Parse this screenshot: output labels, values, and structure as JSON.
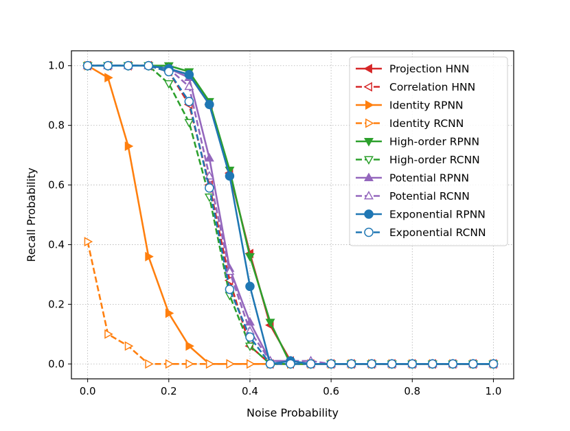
{
  "chart_data": {
    "type": "line",
    "title": "",
    "xlabel": "Noise Probability",
    "ylabel": "Recall Probability",
    "xlim": [
      -0.04,
      1.05
    ],
    "ylim": [
      -0.05,
      1.05
    ],
    "xticks": [
      0.0,
      0.2,
      0.4,
      0.6,
      0.8,
      1.0
    ],
    "xtick_labels": [
      "0.0",
      "0.2",
      "0.4",
      "0.6",
      "0.8",
      "1.0"
    ],
    "yticks": [
      0.0,
      0.2,
      0.4,
      0.6,
      0.8,
      1.0
    ],
    "ytick_labels": [
      "0.0",
      "0.2",
      "0.4",
      "0.6",
      "0.8",
      "1.0"
    ],
    "grid": true,
    "legend_position": "top-right",
    "x": [
      0.0,
      0.05,
      0.1,
      0.15,
      0.2,
      0.25,
      0.3,
      0.35,
      0.4,
      0.45,
      0.5,
      0.55,
      0.6,
      0.65,
      0.7,
      0.75,
      0.8,
      0.85,
      0.9,
      0.95,
      1.0
    ],
    "series": [
      {
        "name": "Projection HNN",
        "color": "#d62728",
        "dash": "solid",
        "marker": "triangle-left",
        "filled": true,
        "values": [
          1.0,
          1.0,
          1.0,
          1.0,
          0.99,
          0.97,
          0.87,
          0.64,
          0.37,
          0.13,
          0.01,
          0.0,
          0.0,
          0.0,
          0.0,
          0.0,
          0.0,
          0.0,
          0.0,
          0.0,
          0.0
        ]
      },
      {
        "name": "Correlation HNN",
        "color": "#d62728",
        "dash": "dashed",
        "marker": "triangle-left",
        "filled": false,
        "values": [
          1.0,
          1.0,
          1.0,
          1.0,
          0.98,
          0.87,
          0.6,
          0.28,
          0.06,
          0.0,
          0.0,
          0.0,
          0.0,
          0.0,
          0.0,
          0.0,
          0.0,
          0.0,
          0.0,
          0.0,
          0.0
        ]
      },
      {
        "name": "Identity RPNN",
        "color": "#ff7f0e",
        "dash": "solid",
        "marker": "triangle-right",
        "filled": true,
        "values": [
          1.0,
          0.96,
          0.73,
          0.36,
          0.17,
          0.06,
          0.0,
          0.0,
          0.0,
          0.0,
          0.0,
          0.0,
          0.0,
          0.0,
          0.0,
          0.0,
          0.0,
          0.0,
          0.0,
          0.0,
          0.0
        ]
      },
      {
        "name": "Identity RCNN",
        "color": "#ff7f0e",
        "dash": "dashed",
        "marker": "triangle-right",
        "filled": false,
        "values": [
          0.41,
          0.1,
          0.06,
          0.0,
          0.0,
          0.0,
          0.0,
          0.0,
          0.0,
          0.0,
          0.0,
          0.0,
          0.0,
          0.0,
          0.0,
          0.0,
          0.0,
          0.0,
          0.0,
          0.0,
          0.0
        ]
      },
      {
        "name": "High-order RPNN",
        "color": "#2ca02c",
        "dash": "solid",
        "marker": "triangle-down",
        "filled": true,
        "values": [
          1.0,
          1.0,
          1.0,
          1.0,
          1.0,
          0.98,
          0.88,
          0.65,
          0.36,
          0.14,
          0.0,
          0.0,
          0.0,
          0.0,
          0.0,
          0.0,
          0.0,
          0.0,
          0.0,
          0.0,
          0.0
        ]
      },
      {
        "name": "High-order RCNN",
        "color": "#2ca02c",
        "dash": "dashed",
        "marker": "triangle-down",
        "filled": false,
        "values": [
          1.0,
          1.0,
          1.0,
          1.0,
          0.94,
          0.81,
          0.56,
          0.23,
          0.06,
          0.0,
          0.0,
          0.0,
          0.0,
          0.0,
          0.0,
          0.0,
          0.0,
          0.0,
          0.0,
          0.0,
          0.0
        ]
      },
      {
        "name": "Potential RPNN",
        "color": "#9467bd",
        "dash": "solid",
        "marker": "triangle-up",
        "filled": true,
        "values": [
          1.0,
          1.0,
          1.0,
          1.0,
          0.99,
          0.96,
          0.69,
          0.32,
          0.14,
          0.01,
          0.01,
          0.0,
          0.0,
          0.0,
          0.0,
          0.0,
          0.0,
          0.0,
          0.0,
          0.0,
          0.0
        ]
      },
      {
        "name": "Potential RCNN",
        "color": "#9467bd",
        "dash": "dashed",
        "marker": "triangle-up",
        "filled": false,
        "values": [
          1.0,
          1.0,
          1.0,
          1.0,
          0.99,
          0.93,
          0.63,
          0.31,
          0.11,
          0.01,
          0.01,
          0.01,
          0.0,
          0.0,
          0.0,
          0.0,
          0.0,
          0.0,
          0.0,
          0.0,
          0.0
        ]
      },
      {
        "name": "Exponential RPNN",
        "color": "#1f77b4",
        "dash": "solid",
        "marker": "circle",
        "filled": true,
        "values": [
          1.0,
          1.0,
          1.0,
          1.0,
          0.99,
          0.97,
          0.87,
          0.63,
          0.26,
          0.0,
          0.01,
          0.0,
          0.0,
          0.0,
          0.0,
          0.0,
          0.0,
          0.0,
          0.0,
          0.0,
          0.0
        ]
      },
      {
        "name": "Exponential RCNN",
        "color": "#1f77b4",
        "dash": "dashed",
        "marker": "circle",
        "filled": false,
        "values": [
          1.0,
          1.0,
          1.0,
          1.0,
          0.98,
          0.88,
          0.59,
          0.25,
          0.09,
          0.0,
          0.0,
          0.0,
          0.0,
          0.0,
          0.0,
          0.0,
          0.0,
          0.0,
          0.0,
          0.0,
          0.0
        ]
      }
    ]
  }
}
